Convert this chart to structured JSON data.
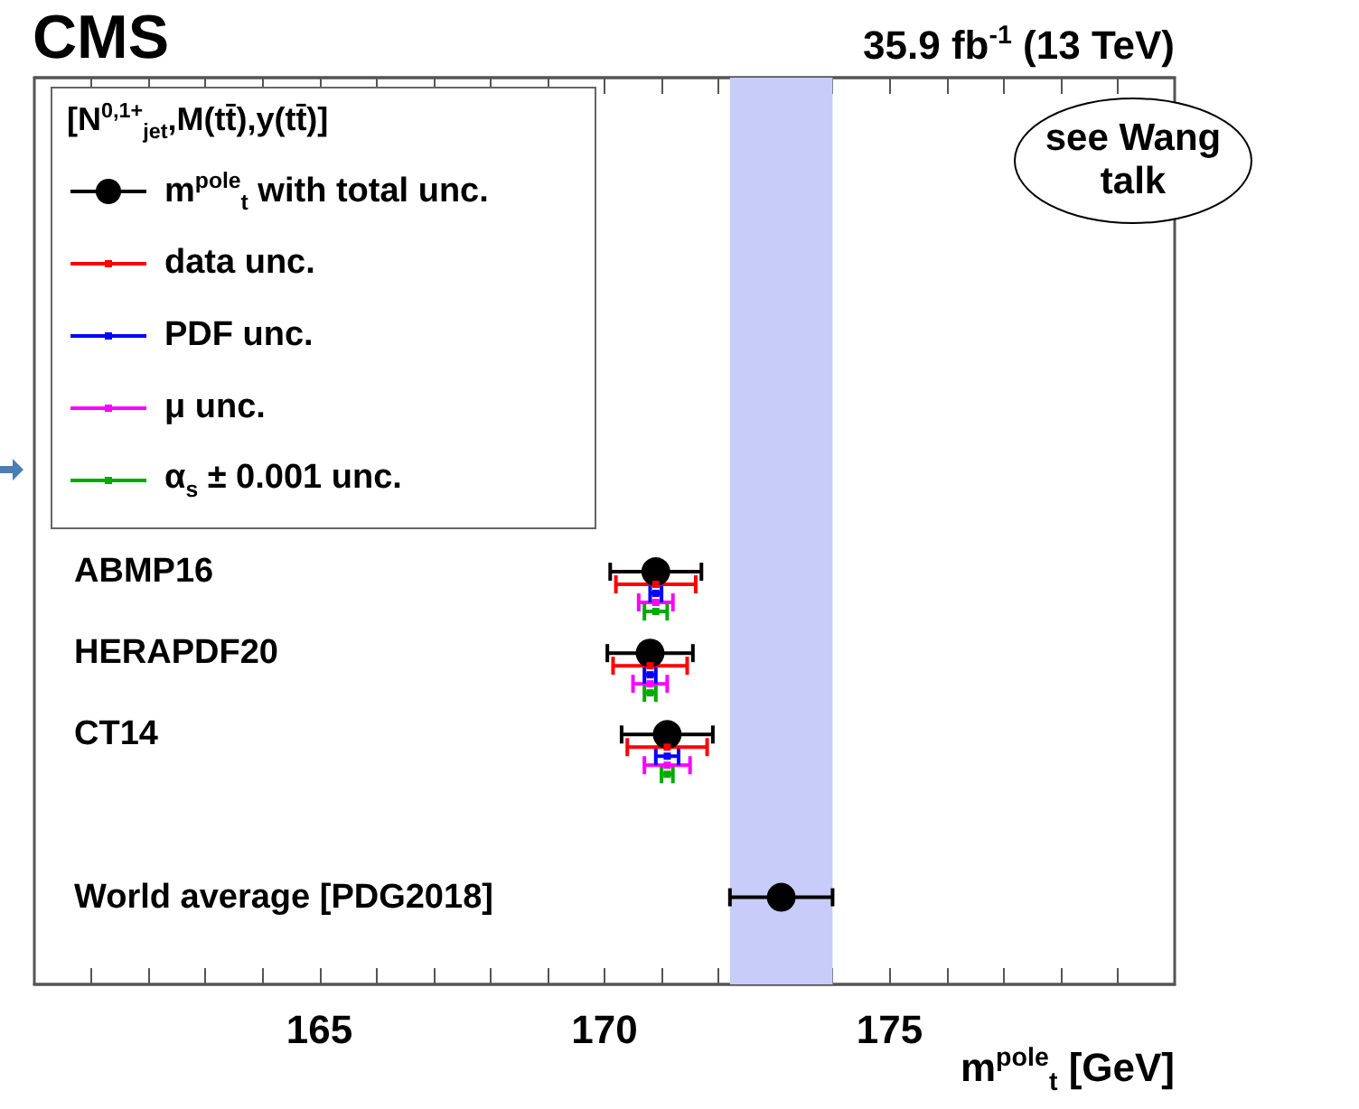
{
  "chart_data": {
    "type": "scatter",
    "orientation": "horizontal",
    "title": "CMS",
    "subtitle": "35.9 fb$^{-1}$ (13 TeV)",
    "xlabel": "m$^{pole}$$_{t}$ [GeV]",
    "legend_title": "[N$^{0,1+}$$_{jet}$,M(tt̄),y(tt̄)]",
    "annotations": [
      "see Wang talk"
    ],
    "categories": [
      "ABMP16",
      "HERAPDF20",
      "CT14",
      null,
      "World average [PDG2018]"
    ],
    "series": [
      {
        "name": "m$^{pole}$$_{t}$ with total unc.",
        "color": "#000000",
        "values": [
          170.9,
          170.8,
          171.1,
          null,
          173.1
        ],
        "errors": [
          0.8,
          0.75,
          0.8,
          null,
          0.9
        ]
      },
      {
        "name": "data unc.",
        "color": "#ff0000",
        "marker": "square",
        "values": [
          170.9,
          170.8,
          171.1,
          null,
          null
        ],
        "errors": [
          0.7,
          0.65,
          0.7,
          null,
          null
        ]
      },
      {
        "name": "PDF unc.",
        "color": "#0000ff",
        "marker": "square",
        "values": [
          170.9,
          170.8,
          171.1,
          null,
          null
        ],
        "errors": [
          0.1,
          0.1,
          0.2,
          null,
          null
        ]
      },
      {
        "name": "μ unc.",
        "color": "#ff00ff",
        "marker": "square",
        "values": [
          170.9,
          170.8,
          171.1,
          null,
          null
        ],
        "errors": [
          0.3,
          0.3,
          0.4,
          null,
          null
        ]
      },
      {
        "name": "α$_{s}$ ± 0.001 unc.",
        "color": "#00aa00",
        "marker": "square",
        "values": [
          170.9,
          170.8,
          171.1,
          null,
          null
        ],
        "errors": [
          0.2,
          0.1,
          0.1,
          null,
          null
        ]
      }
    ],
    "xlim": [
      160,
      180
    ],
    "xticks": [
      {
        "value": 161,
        "label": null
      },
      {
        "value": 162,
        "label": null
      },
      {
        "value": 163,
        "label": null
      },
      {
        "value": 164,
        "label": null
      },
      165,
      {
        "value": 166,
        "label": null
      },
      {
        "value": 167,
        "label": null
      },
      {
        "value": 168,
        "label": null
      },
      {
        "value": 169,
        "label": null
      },
      170,
      {
        "value": 171,
        "label": null
      },
      {
        "value": 172,
        "label": null
      },
      {
        "value": 173,
        "label": null
      },
      {
        "value": 174,
        "label": null
      },
      175,
      {
        "value": 176,
        "label": null
      },
      {
        "value": 177,
        "label": null
      },
      {
        "value": 178,
        "label": null
      },
      {
        "value": 179,
        "label": null
      }
    ],
    "bands": [
      {
        "axis": "x",
        "from": 172.2,
        "to": 174.0,
        "color": "#c8ccf8"
      }
    ],
    "marker": "circle",
    "legend": "top left",
    "grid": false
  }
}
